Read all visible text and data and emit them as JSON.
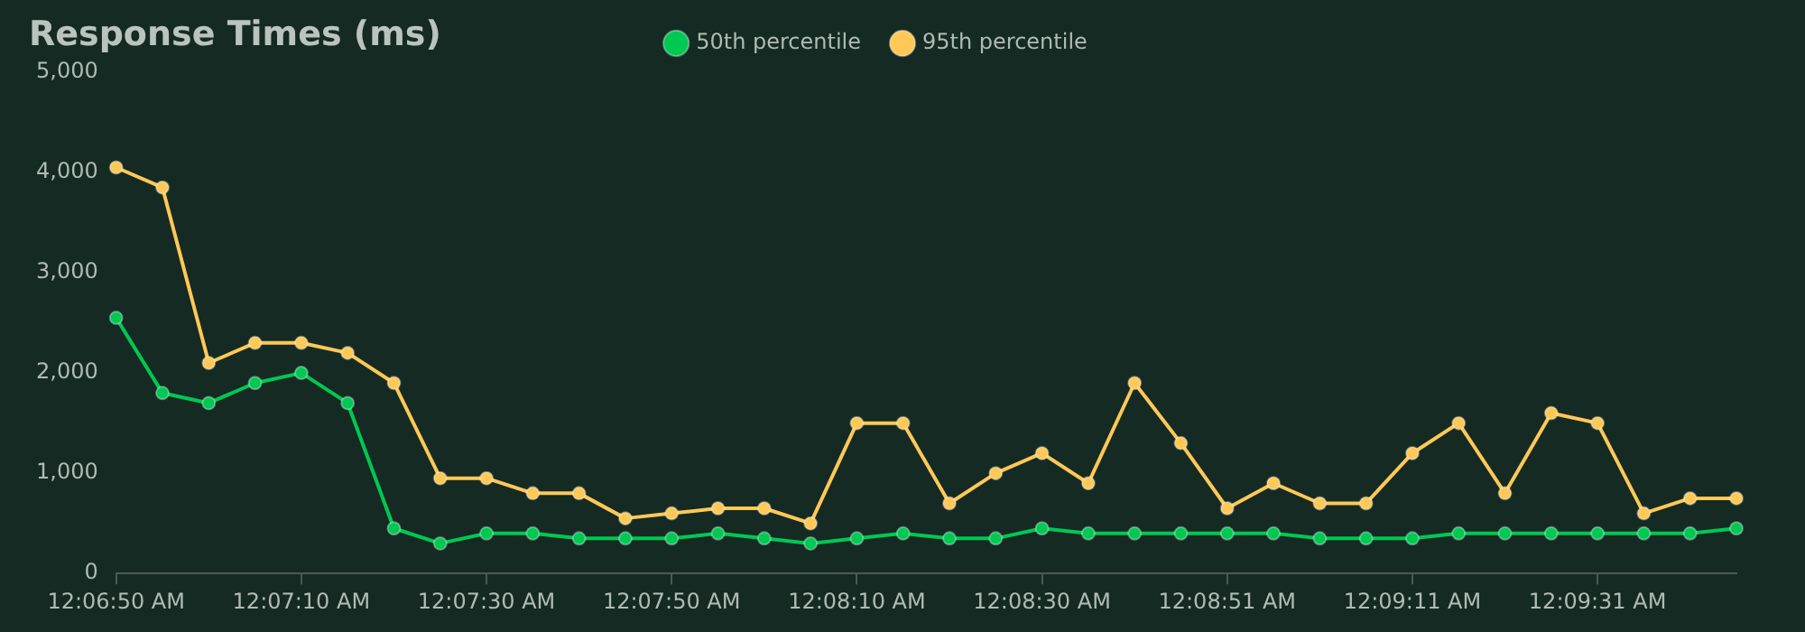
{
  "chart_data": {
    "type": "line",
    "title": "Response Times (ms)",
    "categories": [
      "12:06:50 AM",
      null,
      null,
      null,
      "12:07:10 AM",
      null,
      null,
      null,
      "12:07:30 AM",
      null,
      null,
      null,
      "12:07:50 AM",
      null,
      null,
      null,
      "12:08:10 AM",
      null,
      null,
      null,
      "12:08:30 AM",
      null,
      null,
      null,
      "12:08:51 AM",
      null,
      null,
      null,
      "12:09:11 AM",
      null,
      null,
      null,
      "12:09:31 AM",
      null,
      null,
      null
    ],
    "series": [
      {
        "name": "50th percentile",
        "color": "#00c853",
        "values": [
          2550,
          1800,
          1700,
          1900,
          2000,
          1700,
          450,
          300,
          400,
          400,
          350,
          350,
          350,
          400,
          350,
          300,
          350,
          400,
          350,
          350,
          450,
          400,
          400,
          400,
          400,
          400,
          350,
          350,
          350,
          400,
          400,
          400,
          400,
          400,
          400,
          450
        ]
      },
      {
        "name": "95th percentile",
        "color": "#ffc857",
        "values": [
          4050,
          3850,
          2100,
          2300,
          2300,
          2200,
          1900,
          950,
          950,
          800,
          800,
          550,
          600,
          650,
          650,
          500,
          1500,
          1500,
          700,
          1000,
          1200,
          900,
          1900,
          1300,
          650,
          900,
          700,
          700,
          1200,
          1500,
          800,
          1600,
          1500,
          600,
          750,
          750
        ]
      }
    ],
    "ylim": [
      0,
      5000
    ],
    "yticks": [
      0,
      {
        "value": 1000,
        "label": "1,000"
      },
      {
        "value": 2000,
        "label": "2,000"
      },
      {
        "value": 3000,
        "label": "3,000"
      },
      {
        "value": 4000,
        "label": "4,000"
      },
      {
        "value": 5000,
        "label": "5,000"
      }
    ],
    "grid": false,
    "legend": "top",
    "marker": "circle",
    "line_style": "solid"
  }
}
